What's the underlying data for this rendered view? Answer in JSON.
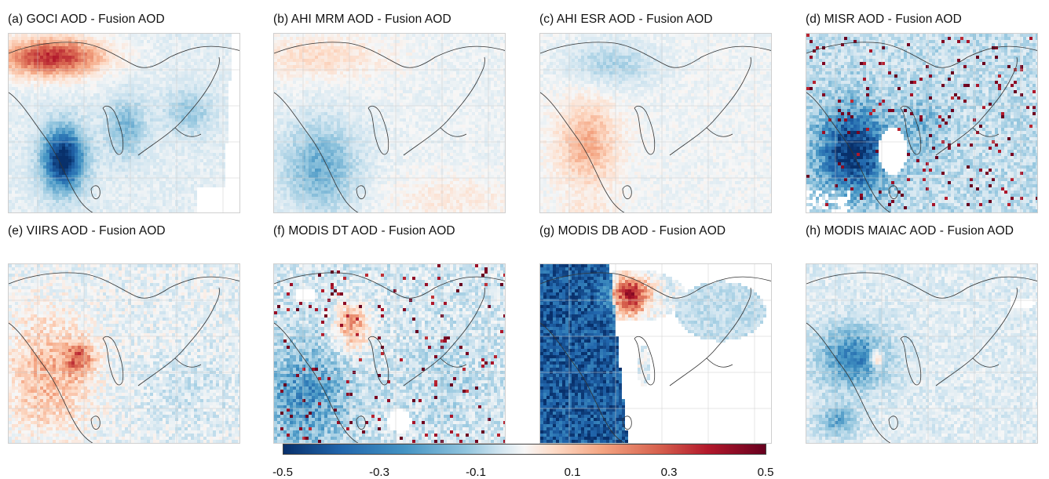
{
  "figure": {
    "panels": [
      {
        "id": "a",
        "title": "(a) GOCI AOD - Fusion AOD",
        "pattern": "goci"
      },
      {
        "id": "b",
        "title": "(b) AHI MRM AOD - Fusion AOD",
        "pattern": "mrm"
      },
      {
        "id": "c",
        "title": "(c) AHI ESR AOD - Fusion AOD",
        "pattern": "esr"
      },
      {
        "id": "d",
        "title": "(d) MISR AOD - Fusion AOD",
        "pattern": "misr"
      },
      {
        "id": "e",
        "title": "(e) VIIRS AOD - Fusion AOD",
        "pattern": "viirs"
      },
      {
        "id": "f",
        "title": "(f) MODIS DT AOD - Fusion AOD",
        "pattern": "dt"
      },
      {
        "id": "g",
        "title": "(g) MODIS DB AOD - Fusion AOD",
        "pattern": "db"
      },
      {
        "id": "h",
        "title": "(h) MODIS MAIAC AOD - Fusion AOD",
        "pattern": "maiac"
      }
    ],
    "colorbar": {
      "min": -0.5,
      "max": 0.5,
      "ticks": [
        "-0.5",
        "-0.3",
        "-0.1",
        "0.1",
        "0.3",
        "0.5"
      ],
      "colormap": [
        "#08306b",
        "#2166ac",
        "#4393c3",
        "#92c5de",
        "#d1e5f0",
        "#f7f7f7",
        "#fddbc7",
        "#f4a582",
        "#d6604d",
        "#b2182b",
        "#67001f"
      ]
    }
  }
}
